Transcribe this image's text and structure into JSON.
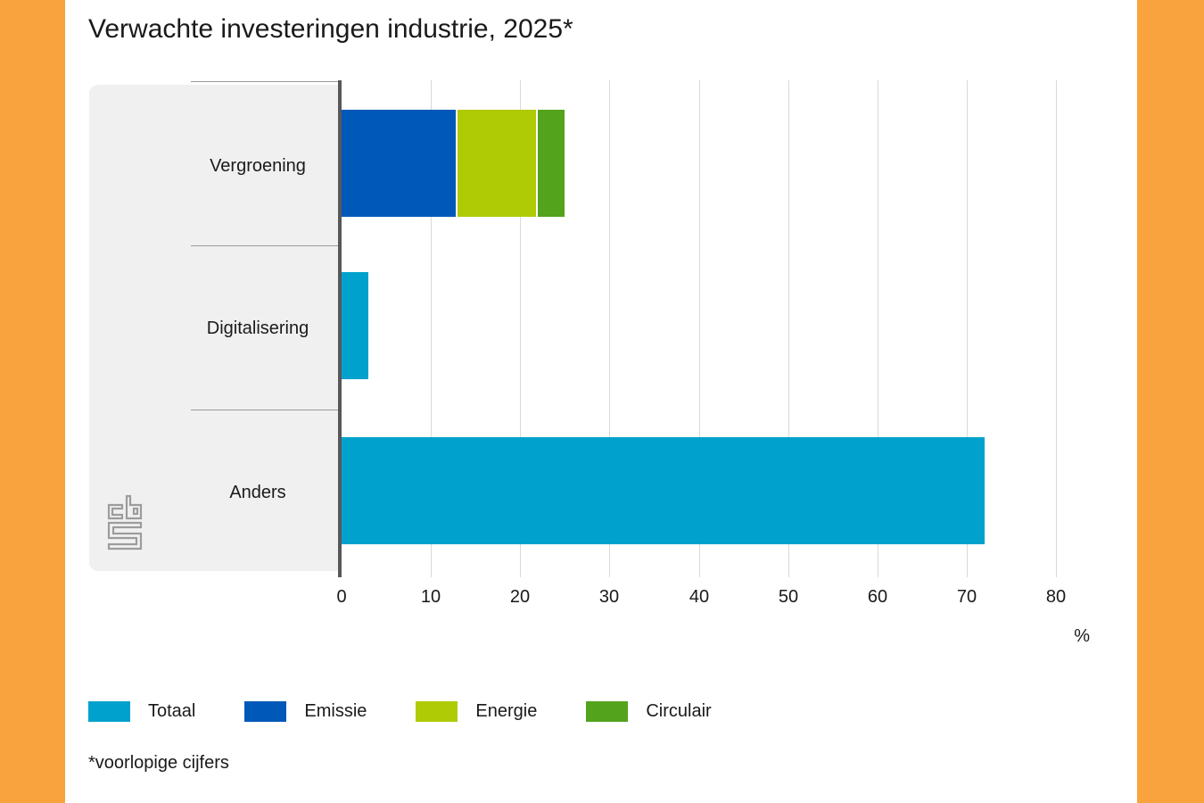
{
  "title": "Verwachte investeringen industrie, 2025*",
  "footnote": "*voorlopige cijfers",
  "x_axis": {
    "unit": "%",
    "ticks": [
      "0",
      "10",
      "20",
      "30",
      "40",
      "50",
      "60",
      "70",
      "80"
    ]
  },
  "colors": {
    "orange_frame": "#F8A33D",
    "panel_gray": "#F0F0F0",
    "separator": "#9B9B9B",
    "axis_line": "#58585A",
    "gridline": "#D9D9D9",
    "totaal": "#00A1CD",
    "emissie": "#0058B8",
    "energie": "#AFCB05",
    "circulair": "#53A31D",
    "logo_gray": "#9C9C9C"
  },
  "legend": [
    {
      "label": "Totaal",
      "color": "#00A1CD"
    },
    {
      "label": "Emissie",
      "color": "#0058B8"
    },
    {
      "label": "Energie",
      "color": "#AFCB05"
    },
    {
      "label": "Circulair",
      "color": "#53A31D"
    }
  ],
  "chart_data": {
    "type": "bar",
    "orientation": "horizontal",
    "stacked": true,
    "title": "Verwachte investeringen industrie, 2025*",
    "categories": [
      "Vergroening",
      "Digitalisering",
      "Anders"
    ],
    "series": [
      {
        "name": "Totaal",
        "color": "#00A1CD",
        "values": [
          0,
          3,
          72
        ]
      },
      {
        "name": "Emissie",
        "color": "#0058B8",
        "values": [
          13,
          0,
          0
        ]
      },
      {
        "name": "Energie",
        "color": "#AFCB05",
        "values": [
          9,
          0,
          0
        ]
      },
      {
        "name": "Circulair",
        "color": "#53A31D",
        "values": [
          3,
          0,
          0
        ]
      }
    ],
    "xlabel": "%",
    "ylabel": "",
    "xlim": [
      0,
      80
    ],
    "xticks": [
      0,
      10,
      20,
      30,
      40,
      50,
      60,
      70,
      80
    ],
    "grid": true,
    "legend_position": "bottom",
    "footnote": "*voorlopige cijfers"
  }
}
